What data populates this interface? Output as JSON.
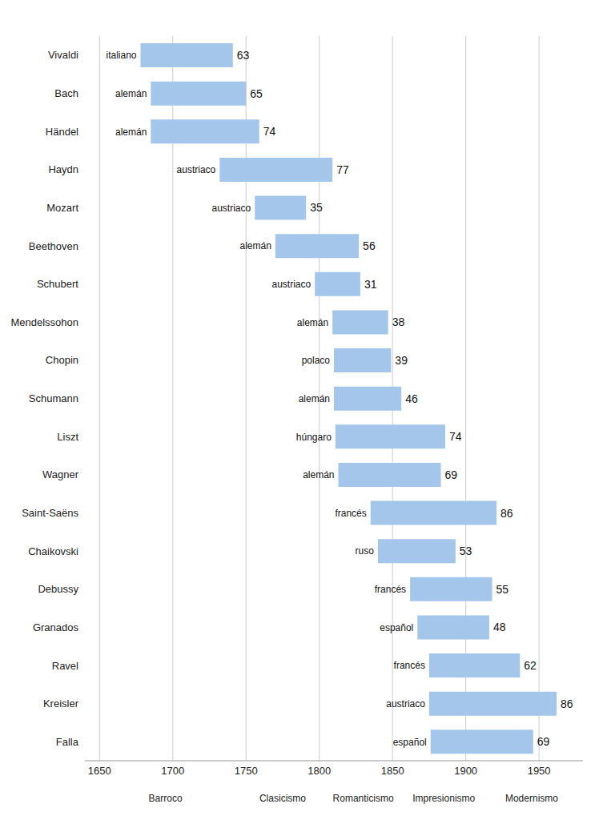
{
  "chart_data": {
    "type": "bar",
    "orientation": "horizontal",
    "categories": [
      "Vivaldi",
      "Bach",
      "Händel",
      "Haydn",
      "Mozart",
      "Beethoven",
      "Schubert",
      "Mendelssohon",
      "Chopin",
      "Schumann",
      "Liszt",
      "Wagner",
      "Saint-Saëns",
      "Chaikovski",
      "Debussy",
      "Granados",
      "Ravel",
      "Kreisler",
      "Falla"
    ],
    "start": [
      1678,
      1685,
      1685,
      1732,
      1756,
      1770,
      1797,
      1809,
      1810,
      1810,
      1811,
      1813,
      1835,
      1840,
      1862,
      1867,
      1875,
      1875,
      1876
    ],
    "end": [
      1741,
      1750,
      1759,
      1809,
      1791,
      1827,
      1828,
      1847,
      1849,
      1856,
      1886,
      1883,
      1921,
      1893,
      1918,
      1916,
      1937,
      1962,
      1946
    ],
    "ages": [
      63,
      65,
      74,
      77,
      35,
      56,
      31,
      38,
      39,
      46,
      74,
      69,
      86,
      53,
      55,
      48,
      62,
      86,
      69
    ],
    "nationalities": [
      "italiano",
      "alemán",
      "alemán",
      "austriaco",
      "austriaco",
      "alemán",
      "austriaco",
      "alemán",
      "polaco",
      "alemán",
      "húngaro",
      "alemán",
      "francés",
      "ruso",
      "francés",
      "español",
      "francés",
      "austriaco",
      "español"
    ],
    "color": "#a4c6ea",
    "data_labels": true,
    "xlim": [
      1640,
      1980
    ],
    "xticks": [
      1650,
      1700,
      1750,
      1800,
      1850,
      1900,
      1950
    ],
    "grid": true,
    "eras": [
      {
        "name": "Barroco",
        "start": 1640,
        "end": 1750,
        "color": "#8ef0a0"
      },
      {
        "name": "Clasicismo",
        "start": 1750,
        "end": 1800,
        "color": "#f0f08c"
      },
      {
        "name": "Romanticismo",
        "start": 1800,
        "end": 1860,
        "color": "#8ce8f0"
      },
      {
        "name": "Impresionismo",
        "start": 1860,
        "end": 1910,
        "color": "#f5a8d8"
      },
      {
        "name": "Modernismo",
        "start": 1910,
        "end": 1980,
        "color": "#f0c8a0"
      }
    ]
  }
}
